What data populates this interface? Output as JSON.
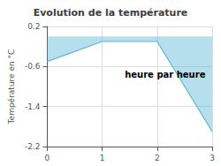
{
  "chart_data": {
    "type": "area",
    "title": "Evolution de la température",
    "xlabel": "heure par heure",
    "ylabel": "Température en °C",
    "x": [
      0,
      1,
      2,
      3
    ],
    "values": [
      -0.5,
      -0.1,
      -0.1,
      -1.9
    ],
    "color": "#5bb8d4",
    "xlim": [
      0,
      3
    ],
    "ylim": [
      -2.2,
      0.2
    ],
    "xticks": [
      0,
      1,
      2,
      3
    ],
    "yticks": [
      0.2,
      -0.6,
      -1.4,
      -2.2
    ],
    "grid": true
  }
}
